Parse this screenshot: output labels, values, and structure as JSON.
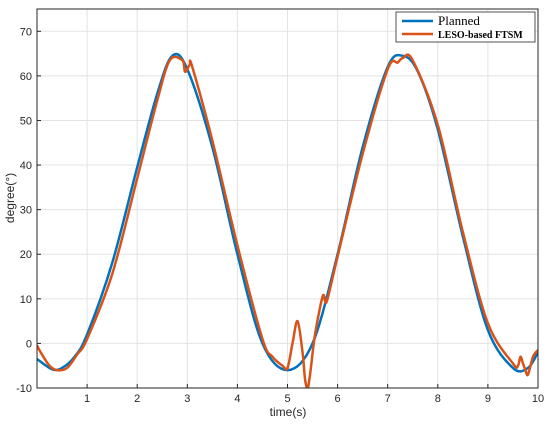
{
  "chart_data": {
    "type": "line",
    "title": "",
    "xlabel": "time(s)",
    "ylabel": "degree(°)",
    "xlim": [
      0,
      10
    ],
    "ylim": [
      -10,
      75
    ],
    "xticks": [
      1,
      2,
      3,
      4,
      5,
      6,
      7,
      8,
      9,
      10
    ],
    "yticks": [
      -10,
      0,
      10,
      20,
      30,
      40,
      50,
      60,
      70
    ],
    "grid": true,
    "legend_position": "top-right",
    "colors": {
      "planned": "#0072BD",
      "leso": "#D95319",
      "grid": "#e3e3e3",
      "axis": "#262626"
    },
    "series": [
      {
        "name": "Planned",
        "x": [
          0.0,
          0.3,
          0.5,
          0.75,
          1.0,
          1.5,
          2.0,
          2.4,
          2.7,
          3.0,
          3.5,
          4.0,
          4.5,
          5.0,
          5.5,
          6.0,
          6.5,
          7.0,
          7.3,
          7.6,
          8.0,
          8.5,
          9.0,
          9.5,
          9.8,
          10.0
        ],
        "y": [
          -3.5,
          -5.8,
          -5.5,
          -3.0,
          2.0,
          18.0,
          39.5,
          56.0,
          64.5,
          61.5,
          44.0,
          20.0,
          0.0,
          -6.0,
          0.0,
          20.0,
          44.0,
          62.0,
          64.5,
          61.0,
          48.0,
          24.0,
          3.0,
          -5.5,
          -5.5,
          -2.0
        ]
      },
      {
        "name": "LESO-based FTSM",
        "x": [
          0.0,
          0.1,
          0.25,
          0.4,
          0.6,
          0.8,
          1.0,
          1.5,
          2.0,
          2.4,
          2.65,
          2.9,
          2.95,
          3.0,
          3.05,
          3.1,
          3.5,
          4.0,
          4.5,
          4.7,
          4.9,
          5.0,
          5.1,
          5.2,
          5.3,
          5.35,
          5.4,
          5.45,
          5.55,
          5.7,
          5.75,
          5.8,
          6.0,
          6.5,
          7.0,
          7.2,
          7.3,
          7.5,
          8.0,
          8.5,
          9.0,
          9.5,
          9.6,
          9.65,
          9.7,
          9.75,
          9.8,
          9.9,
          10.0
        ],
        "y": [
          -0.5,
          -2.5,
          -5.0,
          -6.0,
          -5.5,
          -2.5,
          1.0,
          15.5,
          37.0,
          54.5,
          63.5,
          63.5,
          61.0,
          61.5,
          62.5,
          62.0,
          45.5,
          22.0,
          1.0,
          -3.0,
          -5.0,
          -5.5,
          0.0,
          5.0,
          -2.0,
          -8.0,
          -10.0,
          -7.0,
          2.0,
          10.5,
          9.5,
          10.0,
          19.5,
          42.5,
          61.5,
          63.0,
          64.0,
          63.5,
          49.0,
          25.0,
          4.5,
          -4.5,
          -5.0,
          -3.0,
          -4.5,
          -6.0,
          -7.0,
          -3.0,
          -1.5
        ]
      }
    ]
  }
}
